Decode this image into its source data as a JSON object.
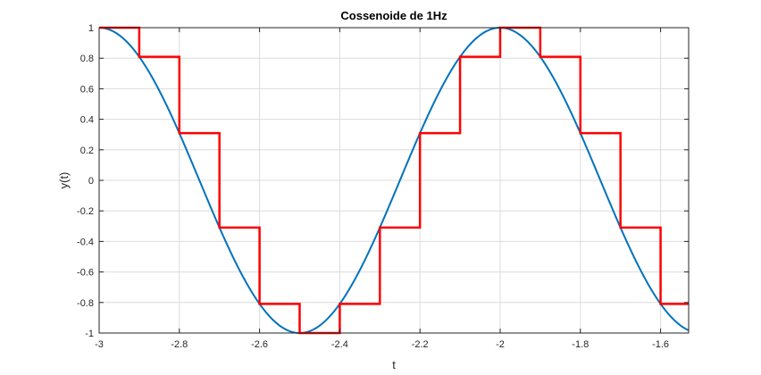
{
  "chart_data": {
    "type": "line",
    "title": "Cossenoide de 1Hz",
    "xlabel": "t",
    "ylabel": "y(t)",
    "xlim": [
      -3,
      -1.53
    ],
    "ylim": [
      -1,
      1
    ],
    "grid": true,
    "xticks": [
      -3,
      -2.8,
      -2.6,
      -2.4,
      -2.2,
      -2,
      -1.8,
      -1.6
    ],
    "xtick_labels": [
      "-3",
      "-2.8",
      "-2.6",
      "-2.4",
      "-2.2",
      "-2",
      "-1.8",
      "-1.6"
    ],
    "yticks": [
      -1,
      -0.8,
      -0.6,
      -0.4,
      -0.2,
      0,
      0.2,
      0.4,
      0.6,
      0.8,
      1
    ],
    "ytick_labels": [
      "-1",
      "-0.8",
      "-0.6",
      "-0.4",
      "-0.2",
      "0",
      "0.2",
      "0.4",
      "0.6",
      "0.8",
      "1"
    ],
    "series": [
      {
        "kind": "continuous",
        "function": "cos(2*pi*1*t)",
        "color": "#0072BD"
      },
      {
        "kind": "stairs",
        "color": "#FF0000",
        "x": [
          -3,
          -2.9,
          -2.8,
          -2.7,
          -2.6,
          -2.5,
          -2.4,
          -2.3,
          -2.2,
          -2.1,
          -2,
          -1.9,
          -1.8,
          -1.7,
          -1.6
        ],
        "y": [
          1,
          0.809,
          0.309,
          -0.309,
          -0.809,
          -1,
          -0.809,
          -0.309,
          0.309,
          0.809,
          1,
          0.809,
          0.309,
          -0.309,
          -0.809
        ]
      }
    ]
  }
}
